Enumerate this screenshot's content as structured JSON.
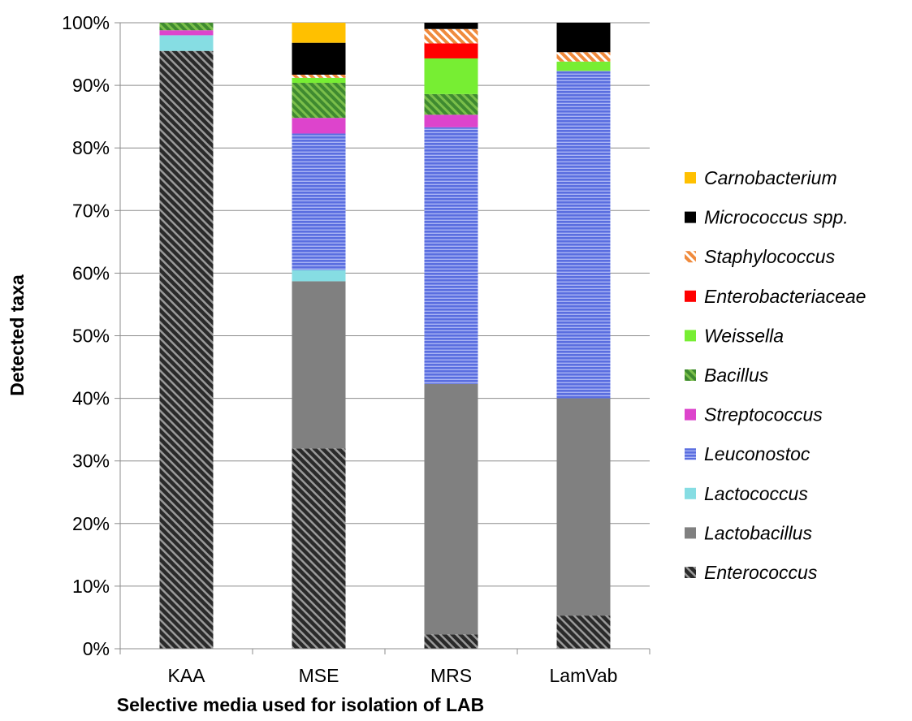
{
  "chart_data": {
    "type": "bar",
    "stacked": true,
    "normalized": true,
    "xlabel": "Selective media used for isolation of LAB",
    "ylabel": "Detected taxa",
    "ylim": [
      0,
      100
    ],
    "yticks": [
      "0%",
      "10%",
      "20%",
      "30%",
      "40%",
      "50%",
      "60%",
      "70%",
      "80%",
      "90%",
      "100%"
    ],
    "grid": true,
    "legend_position": "right",
    "categories": [
      "KAA",
      "MSE",
      "MRS",
      "LamVab"
    ],
    "series": [
      {
        "name": "Enterococcus",
        "color": "#3a3a3a",
        "pattern": "diagonal-stripes-dark",
        "values": [
          95.5,
          32.0,
          2.3,
          5.3
        ]
      },
      {
        "name": "Lactobacillus",
        "color": "#808080",
        "pattern": "solid",
        "values": [
          0,
          26.7,
          40.0,
          34.7
        ]
      },
      {
        "name": "Lactococcus",
        "color": "#86dde3",
        "pattern": "solid",
        "values": [
          2.5,
          1.8,
          0,
          0
        ]
      },
      {
        "name": "Leuconostoc",
        "color": "#5a6ee0",
        "pattern": "horizontal-stripes",
        "values": [
          0,
          21.8,
          41.0,
          52.3
        ]
      },
      {
        "name": "Streptococcus",
        "color": "#dd44cc",
        "pattern": "solid",
        "values": [
          0.8,
          2.5,
          2.0,
          0
        ]
      },
      {
        "name": "Bacillus",
        "color": "#4e9c3a",
        "pattern": "diagonal-stripes-green",
        "values": [
          1.2,
          5.6,
          3.3,
          0
        ]
      },
      {
        "name": "Weissella",
        "color": "#77ee33",
        "pattern": "solid",
        "values": [
          0,
          0.8,
          5.7,
          1.5
        ]
      },
      {
        "name": "Enterobacteriaceae",
        "color": "#ff0000",
        "pattern": "solid",
        "values": [
          0,
          0,
          2.4,
          0
        ]
      },
      {
        "name": "Staphylococcus",
        "color": "#f08a3c",
        "pattern": "diagonal-stripes-orange",
        "values": [
          0,
          0.5,
          2.3,
          1.5
        ]
      },
      {
        "name": "Micrococcus spp.",
        "color": "#000000",
        "pattern": "solid",
        "values": [
          0,
          5.1,
          1.0,
          4.7
        ]
      },
      {
        "name": "Carnobacterium",
        "color": "#ffc000",
        "pattern": "solid",
        "values": [
          0,
          3.2,
          0,
          0
        ]
      }
    ]
  }
}
